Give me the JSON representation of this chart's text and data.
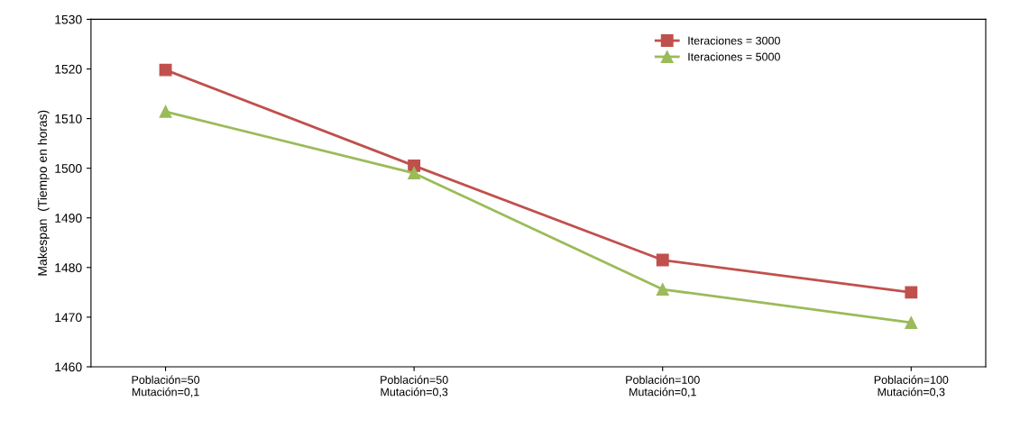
{
  "chart_data": {
    "type": "line",
    "ylabel": "Makespan  (Tiempo en horas)",
    "categories": [
      "Población=50\nMutación=0,1",
      "Población=50\nMutación=0,3",
      "Población=100\nMutación=0,1",
      "Población=100\nMutación=0,3"
    ],
    "series": [
      {
        "name": "Iteraciones = 3000",
        "color": "#c0504d",
        "marker": "square",
        "values": [
          1519.8,
          1500.5,
          1481.5,
          1475.0
        ]
      },
      {
        "name": "Iteraciones = 5000",
        "color": "#9bbb59",
        "marker": "triangle",
        "values": [
          1511.4,
          1499.0,
          1475.6,
          1468.9
        ]
      }
    ],
    "ylim": [
      1460,
      1530
    ],
    "yticks": [
      1460,
      1470,
      1480,
      1490,
      1500,
      1510,
      1520,
      1530
    ],
    "grid": false,
    "legend": "top right"
  }
}
